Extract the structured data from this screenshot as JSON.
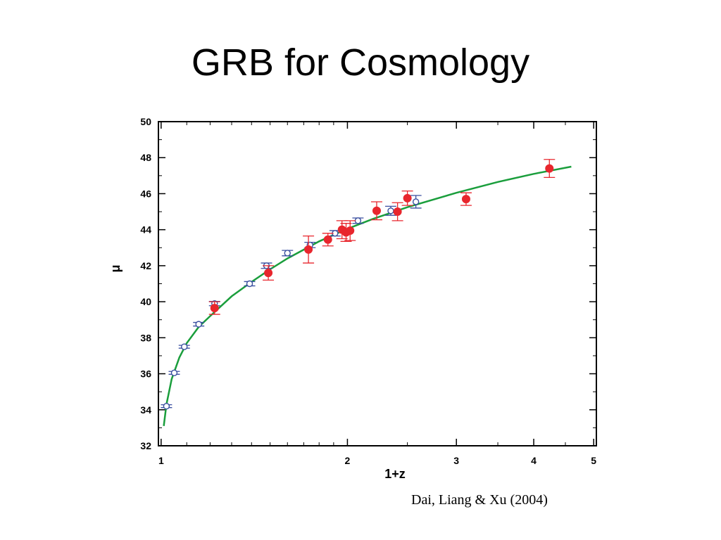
{
  "slide": {
    "title": "GRB for Cosmology",
    "citation": "Dai, Liang & Xu (2004)"
  },
  "colors": {
    "fit_curve": "#1a9e3c",
    "grb_points": "#e8262d",
    "sn_points": "#3a4fa0",
    "frame": "#000000"
  },
  "chart_data": {
    "type": "scatter",
    "title": "",
    "xlabel": "1+z",
    "ylabel": "μ",
    "x_scale": "log",
    "xlim": [
      0.99,
      5.05
    ],
    "ylim": [
      32,
      50
    ],
    "x_ticks": [
      1,
      2,
      3,
      4,
      5
    ],
    "x_tick_labels": [
      "1",
      "2",
      "3",
      "4",
      "5"
    ],
    "y_ticks": [
      32,
      34,
      36,
      38,
      40,
      42,
      44,
      46,
      48,
      50
    ],
    "y_tick_labels": [
      "32",
      "34",
      "36",
      "38",
      "40",
      "42",
      "44",
      "46",
      "48",
      "50"
    ],
    "grid": false,
    "legend": "none",
    "series": [
      {
        "style": "open-circle",
        "color": "#3a4fa0",
        "x": [
          1.02,
          1.05,
          1.09,
          1.15,
          1.22,
          1.39,
          1.48,
          1.6,
          1.74,
          1.91,
          2.08,
          2.35,
          2.58
        ],
        "y": [
          34.2,
          36.05,
          37.5,
          38.75,
          39.9,
          41.0,
          42.0,
          42.7,
          43.15,
          43.8,
          44.5,
          45.05,
          45.55
        ],
        "yerr": [
          0.08,
          0.08,
          0.08,
          0.1,
          0.12,
          0.12,
          0.15,
          0.15,
          0.15,
          0.15,
          0.15,
          0.25,
          0.35
        ]
      },
      {
        "style": "filled-circle",
        "color": "#e8262d",
        "x": [
          1.22,
          1.49,
          1.73,
          1.86,
          1.96,
          1.99,
          2.02,
          2.23,
          2.41,
          2.5,
          3.11,
          4.24
        ],
        "y": [
          39.65,
          41.6,
          42.9,
          43.45,
          44.0,
          43.85,
          43.95,
          45.05,
          45.0,
          45.75,
          45.7,
          47.4
        ],
        "yerr": [
          0.35,
          0.4,
          0.75,
          0.35,
          0.5,
          0.5,
          0.55,
          0.5,
          0.5,
          0.4,
          0.35,
          0.5
        ]
      }
    ],
    "fit_curve": {
      "style": "line",
      "color": "#1a9e3c",
      "x": [
        1.01,
        1.02,
        1.04,
        1.07,
        1.1,
        1.15,
        1.2,
        1.3,
        1.4,
        1.5,
        1.6,
        1.8,
        2.0,
        2.2,
        2.5,
        3.0,
        3.5,
        4.0,
        4.6
      ],
      "y": [
        33.1,
        34.3,
        35.7,
        36.9,
        37.7,
        38.6,
        39.2,
        40.3,
        41.1,
        41.8,
        42.4,
        43.35,
        44.05,
        44.6,
        45.25,
        46.05,
        46.65,
        47.1,
        47.5
      ]
    }
  }
}
